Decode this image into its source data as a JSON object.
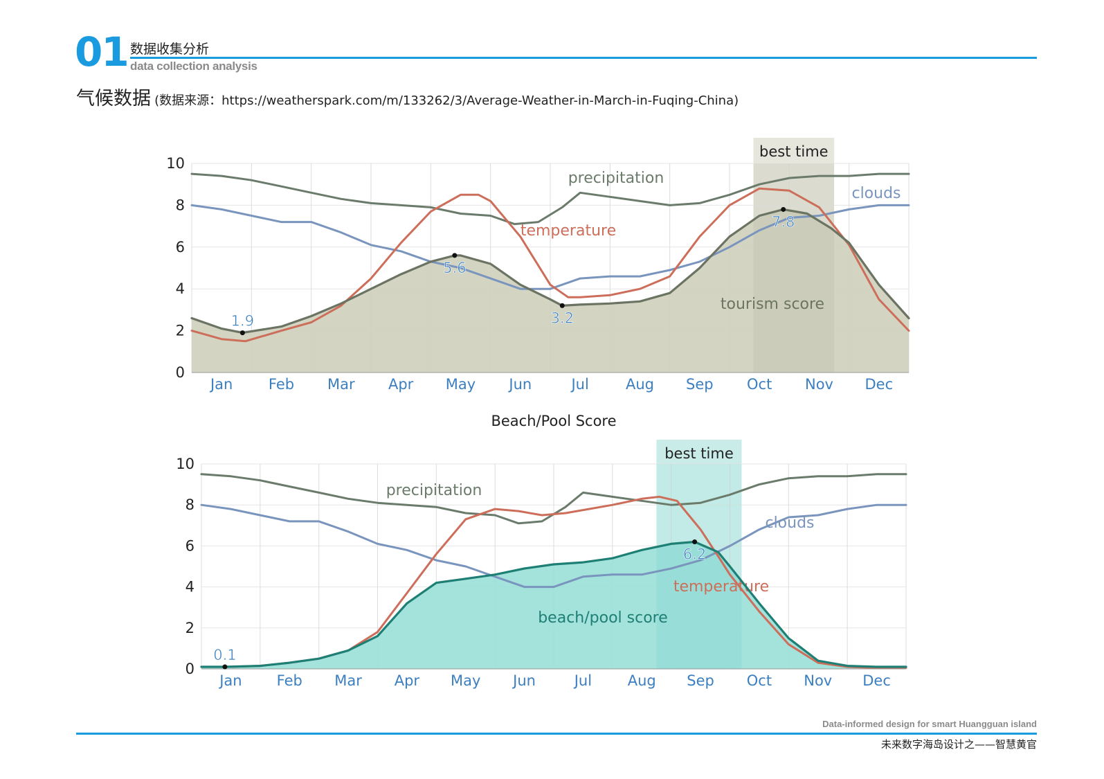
{
  "header": {
    "number": "01",
    "title_cn": "数据收集分析",
    "title_en": "data collection analysis",
    "section_title": "气候数据",
    "section_source": "(数据来源：https://weatherspark.com/m/133262/3/Average-Weather-in-March-in-Fuqing-China)"
  },
  "footer": {
    "en": "Data-informed design for smart Huangguan island",
    "cn": "未来数字海岛设计之——智慧黄官"
  },
  "colors": {
    "accent": "#1a9be0",
    "precipitation": "#6b7b6b",
    "clouds": "#7a95bd",
    "temperature": "#cd6e5a",
    "tourism_fill": "#cfcfbd",
    "tourism_line": "#6b7362",
    "tourism_best": "#bdbca8",
    "beach_fill": "#9adfd8",
    "beach_line": "#1e7f74",
    "beach_best": "#7fd5cc",
    "month_text": "#3c7fc1"
  },
  "chart_data": [
    {
      "type": "area",
      "title": "",
      "months": [
        "Jan",
        "Feb",
        "Mar",
        "Apr",
        "May",
        "Jun",
        "Jul",
        "Aug",
        "Sep",
        "Oct",
        "Nov",
        "Dec"
      ],
      "ylim": [
        0,
        10
      ],
      "yticks": [
        0,
        2,
        4,
        6,
        8,
        10
      ],
      "grid": true,
      "best_time": {
        "label": "best time",
        "range": [
          9.4,
          10.75
        ]
      },
      "series": [
        {
          "name": "precipitation",
          "x": [
            0,
            0.5,
            1,
            1.5,
            2,
            2.5,
            3,
            3.5,
            4,
            4.5,
            5,
            5.4,
            5.8,
            6.2,
            6.5,
            7,
            7.5,
            8,
            8.5,
            9,
            9.5,
            10,
            10.5,
            11,
            11.5,
            12
          ],
          "values": [
            9.5,
            9.4,
            9.2,
            8.9,
            8.6,
            8.3,
            8.1,
            8.0,
            7.9,
            7.6,
            7.5,
            7.1,
            7.2,
            7.9,
            8.6,
            8.4,
            8.2,
            8.0,
            8.1,
            8.5,
            9.0,
            9.3,
            9.4,
            9.4,
            9.5,
            9.5
          ]
        },
        {
          "name": "clouds",
          "x": [
            0,
            0.5,
            1,
            1.5,
            2,
            2.5,
            3,
            3.5,
            4,
            4.5,
            5,
            5.5,
            6,
            6.5,
            7,
            7.5,
            8,
            8.5,
            9,
            9.5,
            10,
            10.5,
            11,
            11.5,
            12
          ],
          "values": [
            8.0,
            7.8,
            7.5,
            7.2,
            7.2,
            6.7,
            6.1,
            5.8,
            5.3,
            5.0,
            4.5,
            4.0,
            4.0,
            4.5,
            4.6,
            4.6,
            4.9,
            5.3,
            6.0,
            6.8,
            7.4,
            7.5,
            7.8,
            8.0,
            8.0
          ]
        },
        {
          "name": "temperature",
          "x": [
            0,
            0.5,
            0.9,
            1.5,
            2,
            2.5,
            3,
            3.5,
            4,
            4.5,
            4.8,
            5,
            5.5,
            6,
            6.3,
            6.5,
            7,
            7.5,
            8,
            8.5,
            9,
            9.5,
            10,
            10.5,
            11,
            11.5,
            12
          ],
          "values": [
            2.0,
            1.6,
            1.5,
            2.0,
            2.4,
            3.2,
            4.5,
            6.2,
            7.7,
            8.5,
            8.5,
            8.2,
            6.5,
            4.2,
            3.6,
            3.6,
            3.7,
            4.0,
            4.6,
            6.5,
            8.0,
            8.8,
            8.7,
            7.9,
            6.1,
            3.5,
            2.0
          ]
        },
        {
          "name": "tourism score",
          "x": [
            0,
            0.5,
            0.85,
            1.5,
            2,
            2.5,
            3,
            3.5,
            4,
            4.4,
            4.5,
            5,
            5.5,
            6,
            6.2,
            6.5,
            7,
            7.5,
            8,
            8.5,
            9,
            9.5,
            9.9,
            10.3,
            10.7,
            11,
            11.5,
            12
          ],
          "values": [
            2.6,
            2.1,
            1.9,
            2.2,
            2.7,
            3.3,
            4.0,
            4.7,
            5.3,
            5.6,
            5.6,
            5.2,
            4.2,
            3.5,
            3.2,
            3.25,
            3.3,
            3.4,
            3.8,
            5.0,
            6.5,
            7.5,
            7.8,
            7.6,
            6.9,
            6.2,
            4.2,
            2.6
          ]
        }
      ],
      "point_labels": [
        {
          "x": 0.85,
          "value": 1.9,
          "label": "1.9"
        },
        {
          "x": 4.4,
          "value": 5.6,
          "label": "5.6"
        },
        {
          "x": 6.2,
          "value": 3.2,
          "label": "3.2"
        },
        {
          "x": 9.9,
          "value": 7.8,
          "label": "7.8"
        }
      ],
      "score_label": "tourism score"
    },
    {
      "type": "area",
      "title": "Beach/Pool Score",
      "months": [
        "Jan",
        "Feb",
        "Mar",
        "Apr",
        "May",
        "Jun",
        "Jul",
        "Aug",
        "Sep",
        "Oct",
        "Nov",
        "Dec"
      ],
      "ylim": [
        0,
        10
      ],
      "yticks": [
        0,
        2,
        4,
        6,
        8,
        10
      ],
      "grid": true,
      "best_time": {
        "label": "best time",
        "range": [
          7.75,
          9.2
        ]
      },
      "series": [
        {
          "name": "precipitation",
          "x": [
            0,
            0.5,
            1,
            1.5,
            2,
            2.5,
            3,
            3.5,
            4,
            4.5,
            5,
            5.4,
            5.8,
            6.2,
            6.5,
            7,
            7.5,
            8,
            8.5,
            9,
            9.5,
            10,
            10.5,
            11,
            11.5,
            12
          ],
          "values": [
            9.5,
            9.4,
            9.2,
            8.9,
            8.6,
            8.3,
            8.1,
            8.0,
            7.9,
            7.6,
            7.5,
            7.1,
            7.2,
            7.9,
            8.6,
            8.4,
            8.2,
            8.0,
            8.1,
            8.5,
            9.0,
            9.3,
            9.4,
            9.4,
            9.5,
            9.5
          ]
        },
        {
          "name": "clouds",
          "x": [
            0,
            0.5,
            1,
            1.5,
            2,
            2.5,
            3,
            3.5,
            4,
            4.5,
            5,
            5.5,
            6,
            6.5,
            7,
            7.5,
            8,
            8.5,
            9,
            9.5,
            10,
            10.5,
            11,
            11.5,
            12
          ],
          "values": [
            8.0,
            7.8,
            7.5,
            7.2,
            7.2,
            6.7,
            6.1,
            5.8,
            5.3,
            5.0,
            4.5,
            4.0,
            4.0,
            4.5,
            4.6,
            4.6,
            4.9,
            5.3,
            6.0,
            6.8,
            7.4,
            7.5,
            7.8,
            8.0,
            8.0
          ]
        },
        {
          "name": "temperature",
          "x": [
            0,
            0.5,
            1,
            1.5,
            2,
            2.5,
            3,
            3.5,
            4,
            4.5,
            5,
            5.4,
            5.8,
            6.2,
            6.6,
            7,
            7.5,
            7.8,
            8.1,
            8.3,
            8.5,
            8.8,
            9,
            9.5,
            10,
            10.5,
            11,
            11.5,
            12
          ],
          "values": [
            0.1,
            0.1,
            0.15,
            0.3,
            0.5,
            0.9,
            1.8,
            3.7,
            5.6,
            7.3,
            7.8,
            7.7,
            7.5,
            7.6,
            7.8,
            8.0,
            8.3,
            8.4,
            8.2,
            7.5,
            6.8,
            5.5,
            4.6,
            2.8,
            1.2,
            0.3,
            0.1,
            0.05,
            0.05
          ]
        },
        {
          "name": "beach/pool score",
          "x": [
            0,
            0.4,
            1,
            1.5,
            2,
            2.5,
            3,
            3.5,
            4,
            4.5,
            5,
            5.5,
            6,
            6.5,
            7,
            7.5,
            8,
            8.4,
            8.8,
            9,
            9.5,
            10,
            10.5,
            11,
            11.5,
            12
          ],
          "values": [
            0.1,
            0.1,
            0.15,
            0.3,
            0.5,
            0.9,
            1.6,
            3.2,
            4.2,
            4.4,
            4.6,
            4.9,
            5.1,
            5.2,
            5.4,
            5.8,
            6.1,
            6.2,
            5.7,
            5.0,
            3.2,
            1.5,
            0.4,
            0.15,
            0.1,
            0.1
          ]
        }
      ],
      "point_labels": [
        {
          "x": 0.4,
          "value": 0.1,
          "label": "0.1"
        },
        {
          "x": 8.4,
          "value": 6.2,
          "label": "6.2"
        }
      ],
      "score_label": "beach/pool score"
    }
  ]
}
